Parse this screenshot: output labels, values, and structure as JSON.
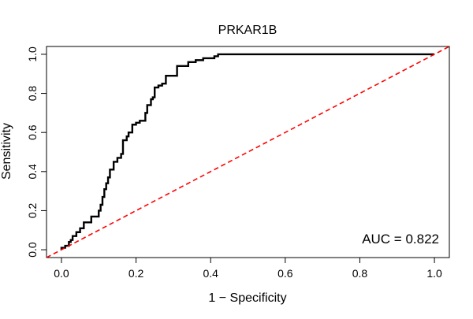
{
  "chart_data": {
    "type": "line",
    "title": "PRKAR1B",
    "xlabel": "1 − Specificity",
    "ylabel": "Sensitivity",
    "xlim": [
      -0.04,
      1.04
    ],
    "ylim": [
      -0.04,
      1.04
    ],
    "x_ticks": [
      0.0,
      0.2,
      0.4,
      0.6,
      0.8,
      1.0
    ],
    "x_tick_labels": [
      "0.0",
      "0.2",
      "0.4",
      "0.6",
      "0.8",
      "1.0"
    ],
    "y_ticks": [
      0.0,
      0.2,
      0.4,
      0.6,
      0.8,
      1.0
    ],
    "y_tick_labels": [
      "0.0",
      "0.2",
      "0.4",
      "0.6",
      "0.8",
      "1.0"
    ],
    "grid": false,
    "annotation": "AUC = 0.822",
    "series": [
      {
        "name": "ROC curve",
        "color": "#000000",
        "style": "solid-step",
        "x": [
          0.0,
          0.0,
          0.01,
          0.01,
          0.02,
          0.02,
          0.025,
          0.025,
          0.03,
          0.03,
          0.04,
          0.04,
          0.05,
          0.05,
          0.06,
          0.06,
          0.08,
          0.08,
          0.1,
          0.1,
          0.105,
          0.105,
          0.11,
          0.11,
          0.115,
          0.115,
          0.12,
          0.12,
          0.125,
          0.125,
          0.13,
          0.13,
          0.14,
          0.14,
          0.15,
          0.15,
          0.16,
          0.16,
          0.165,
          0.165,
          0.175,
          0.175,
          0.18,
          0.18,
          0.19,
          0.19,
          0.2,
          0.2,
          0.21,
          0.21,
          0.225,
          0.225,
          0.23,
          0.23,
          0.24,
          0.24,
          0.245,
          0.245,
          0.25,
          0.25,
          0.26,
          0.26,
          0.27,
          0.27,
          0.28,
          0.28,
          0.3,
          0.3,
          0.31,
          0.31,
          0.34,
          0.34,
          0.36,
          0.36,
          0.38,
          0.38,
          0.41,
          0.41,
          0.42,
          0.42,
          1.0
        ],
        "y": [
          0.0,
          0.01,
          0.01,
          0.02,
          0.02,
          0.04,
          0.04,
          0.05,
          0.05,
          0.07,
          0.07,
          0.09,
          0.09,
          0.11,
          0.11,
          0.14,
          0.14,
          0.17,
          0.17,
          0.2,
          0.2,
          0.23,
          0.23,
          0.27,
          0.27,
          0.31,
          0.31,
          0.34,
          0.34,
          0.37,
          0.37,
          0.41,
          0.41,
          0.45,
          0.45,
          0.47,
          0.47,
          0.49,
          0.49,
          0.56,
          0.56,
          0.58,
          0.58,
          0.6,
          0.6,
          0.64,
          0.64,
          0.65,
          0.65,
          0.66,
          0.66,
          0.7,
          0.7,
          0.74,
          0.74,
          0.77,
          0.77,
          0.78,
          0.78,
          0.83,
          0.83,
          0.84,
          0.84,
          0.85,
          0.85,
          0.89,
          0.89,
          0.89,
          0.89,
          0.94,
          0.94,
          0.96,
          0.96,
          0.97,
          0.97,
          0.98,
          0.98,
          0.99,
          0.99,
          1.0,
          1.0
        ]
      },
      {
        "name": "Chance line",
        "color": "#ff0000",
        "style": "dashed",
        "x": [
          -0.04,
          1.04
        ],
        "y": [
          -0.04,
          1.04
        ]
      }
    ]
  }
}
